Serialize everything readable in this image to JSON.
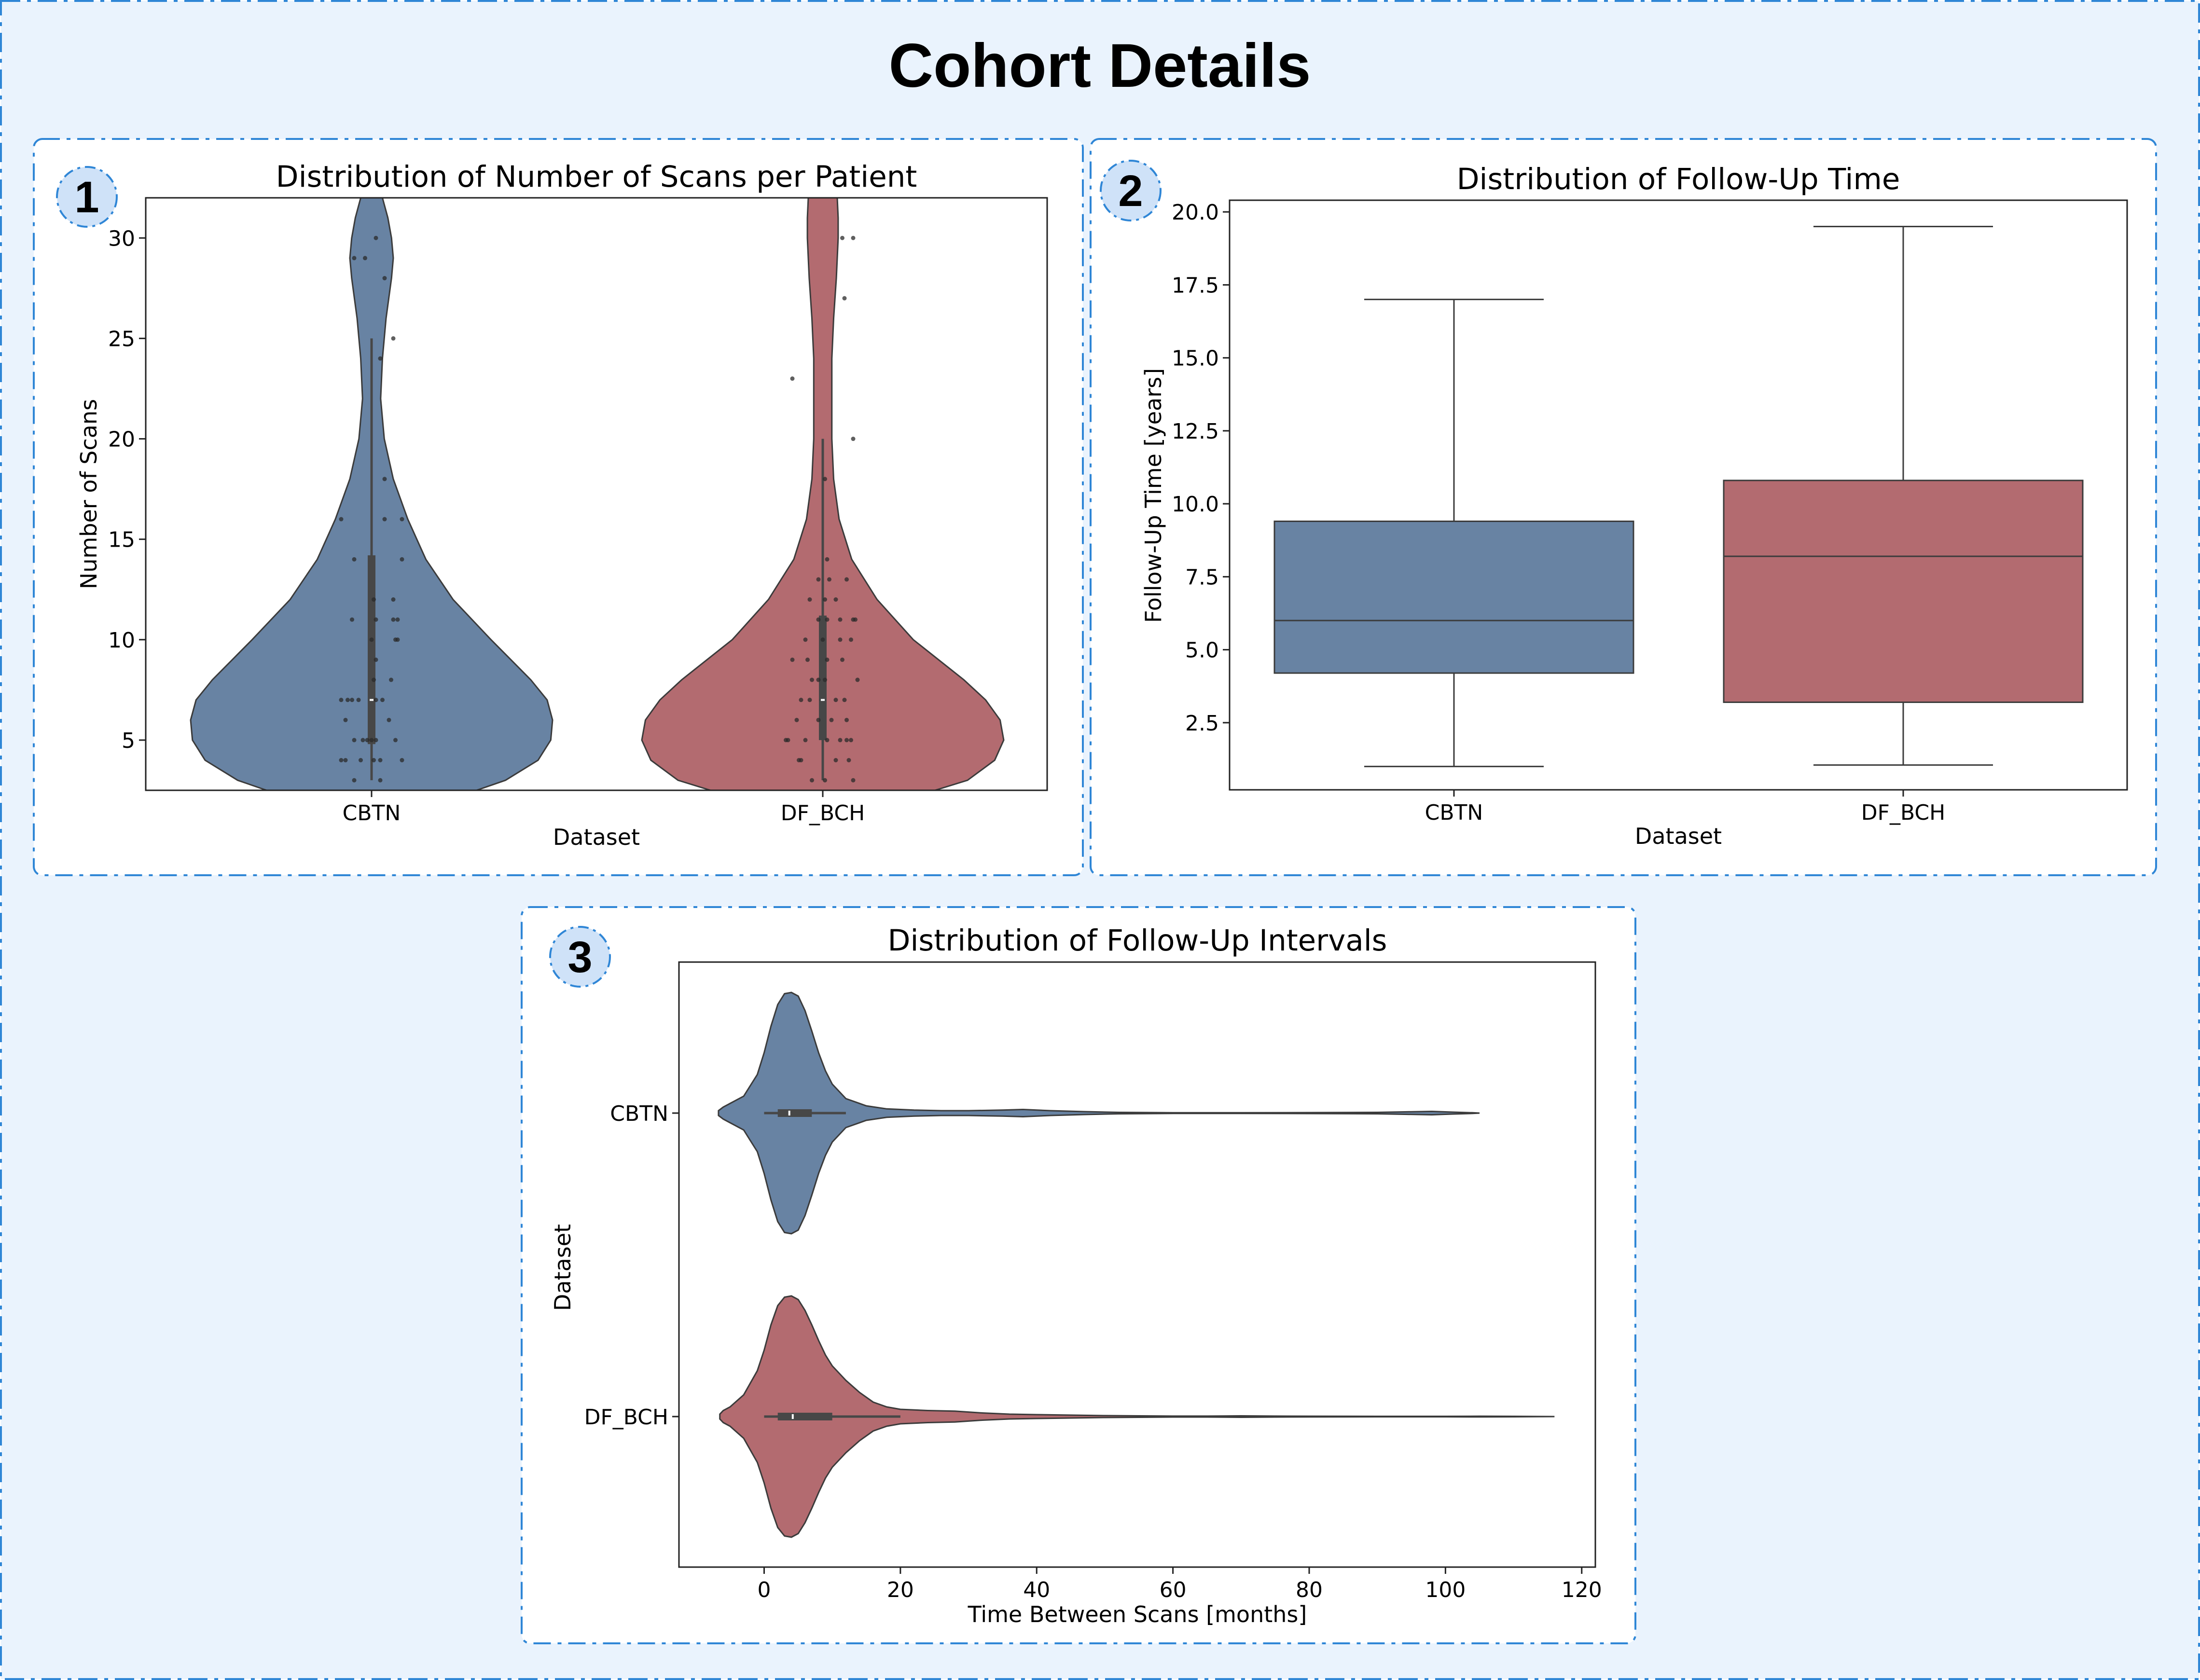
{
  "page": {
    "title": "Cohort Details",
    "background_color": "#eaf3fd",
    "border_color": "#2f86d6",
    "badge_fill": "#cfe2f8",
    "panel_background": "#ffffff"
  },
  "colors": {
    "CBTN": "#6883a3",
    "DF_BCH": "#b36b70",
    "outline": "#3b3b3b",
    "inner_box": "#474747",
    "points": "#2a2a2a"
  },
  "panels": [
    {
      "badge": "1",
      "chart_data": {
        "type": "violin",
        "orientation": "vertical",
        "title": "Distribution of Number of Scans per Patient",
        "xlabel": "Dataset",
        "ylabel": "Number of Scans",
        "categories": [
          "CBTN",
          "DF_BCH"
        ],
        "ylim": [
          2.5,
          32
        ],
        "yticks": [
          5,
          10,
          15,
          20,
          25,
          30
        ],
        "ytick_labels": [
          "5",
          "10",
          "15",
          "20",
          "25",
          "30"
        ],
        "series": [
          {
            "name": "CBTN",
            "density": [
              [
                2.5,
                0.58
              ],
              [
                3,
                0.74
              ],
              [
                4,
                0.92
              ],
              [
                5,
                0.99
              ],
              [
                6,
                1.0
              ],
              [
                7,
                0.97
              ],
              [
                8,
                0.88
              ],
              [
                9,
                0.77
              ],
              [
                10,
                0.66
              ],
              [
                12,
                0.45
              ],
              [
                14,
                0.3
              ],
              [
                16,
                0.2
              ],
              [
                18,
                0.12
              ],
              [
                20,
                0.07
              ],
              [
                22,
                0.05
              ],
              [
                24,
                0.06
              ],
              [
                26,
                0.08
              ],
              [
                28,
                0.11
              ],
              [
                29,
                0.12
              ],
              [
                30,
                0.11
              ],
              [
                31,
                0.09
              ],
              [
                32,
                0.06
              ]
            ],
            "box": {
              "q1": 4.8,
              "median": 7,
              "q3": 14.2,
              "whisker_low": 3,
              "whisker_high": 25
            },
            "points": [
              [
                0.2,
                3
              ],
              [
                -0.4,
                29
              ],
              [
                -0.15,
                29
              ],
              [
                0.3,
                28
              ],
              [
                0.1,
                30
              ],
              [
                0.5,
                25
              ],
              [
                0.2,
                24
              ],
              [
                0.3,
                18
              ],
              [
                0.3,
                16
              ],
              [
                0.7,
                16
              ],
              [
                -0.7,
                16
              ],
              [
                0.7,
                14
              ],
              [
                -0.4,
                14
              ],
              [
                0.05,
                12
              ],
              [
                0.5,
                12
              ],
              [
                0.1,
                11
              ],
              [
                0.5,
                11
              ],
              [
                0.6,
                11
              ],
              [
                -0.45,
                11
              ],
              [
                0.0,
                10
              ],
              [
                0.6,
                10
              ],
              [
                0.55,
                10
              ],
              [
                0.1,
                9
              ],
              [
                0.05,
                8
              ],
              [
                0.45,
                8
              ],
              [
                -0.7,
                7
              ],
              [
                -0.55,
                7
              ],
              [
                -0.45,
                7
              ],
              [
                -0.3,
                7
              ],
              [
                0.1,
                7
              ],
              [
                0.25,
                7
              ],
              [
                -0.6,
                6
              ],
              [
                0.4,
                6
              ],
              [
                -0.4,
                5
              ],
              [
                -0.2,
                5
              ],
              [
                -0.1,
                5
              ],
              [
                0.0,
                5
              ],
              [
                0.1,
                5
              ],
              [
                0.55,
                5
              ],
              [
                -0.7,
                4
              ],
              [
                -0.6,
                4
              ],
              [
                -0.25,
                4
              ],
              [
                0.05,
                4
              ],
              [
                0.2,
                4
              ],
              [
                0.7,
                4
              ],
              [
                -0.4,
                3
              ]
            ]
          },
          {
            "name": "DF_BCH",
            "density": [
              [
                2.5,
                0.62
              ],
              [
                3,
                0.8
              ],
              [
                4,
                0.95
              ],
              [
                5,
                1.0
              ],
              [
                6,
                0.98
              ],
              [
                7,
                0.9
              ],
              [
                8,
                0.78
              ],
              [
                9,
                0.64
              ],
              [
                10,
                0.5
              ],
              [
                12,
                0.3
              ],
              [
                14,
                0.16
              ],
              [
                16,
                0.09
              ],
              [
                18,
                0.06
              ],
              [
                20,
                0.05
              ],
              [
                22,
                0.05
              ],
              [
                24,
                0.05
              ],
              [
                26,
                0.06
              ],
              [
                28,
                0.075
              ],
              [
                30,
                0.085
              ],
              [
                31,
                0.085
              ],
              [
                32,
                0.08
              ]
            ],
            "box": {
              "q1": 5,
              "median": 7,
              "q3": 11.2,
              "whisker_low": 3,
              "whisker_high": 20
            },
            "points": [
              [
                -0.7,
                23
              ],
              [
                0.5,
                27
              ],
              [
                0.45,
                30
              ],
              [
                0.7,
                30
              ],
              [
                0.7,
                20
              ],
              [
                0.05,
                18
              ],
              [
                0.1,
                14
              ],
              [
                -0.1,
                13
              ],
              [
                0.15,
                13
              ],
              [
                0.55,
                13
              ],
              [
                -0.3,
                12
              ],
              [
                0.05,
                12
              ],
              [
                0.3,
                12
              ],
              [
                -0.1,
                11
              ],
              [
                0.1,
                11
              ],
              [
                0.4,
                11
              ],
              [
                0.7,
                11
              ],
              [
                0.75,
                11
              ],
              [
                -0.4,
                10
              ],
              [
                0.0,
                10
              ],
              [
                0.4,
                10
              ],
              [
                0.65,
                10
              ],
              [
                -0.7,
                9
              ],
              [
                -0.35,
                9
              ],
              [
                0.1,
                9
              ],
              [
                0.45,
                9
              ],
              [
                -0.25,
                8
              ],
              [
                -0.1,
                8
              ],
              [
                0.05,
                8
              ],
              [
                0.8,
                8
              ],
              [
                -0.5,
                7
              ],
              [
                -0.3,
                7
              ],
              [
                0.3,
                7
              ],
              [
                0.5,
                7
              ],
              [
                -0.6,
                6
              ],
              [
                -0.1,
                6
              ],
              [
                0.2,
                6
              ],
              [
                0.55,
                6
              ],
              [
                -0.85,
                5
              ],
              [
                -0.8,
                5
              ],
              [
                -0.4,
                5
              ],
              [
                0.1,
                5
              ],
              [
                0.4,
                5
              ],
              [
                0.55,
                5
              ],
              [
                0.65,
                5
              ],
              [
                -0.55,
                4
              ],
              [
                -0.5,
                4
              ],
              [
                0.3,
                4
              ],
              [
                0.6,
                4
              ],
              [
                -0.25,
                3
              ],
              [
                0.05,
                3
              ],
              [
                0.7,
                3
              ]
            ]
          }
        ]
      }
    },
    {
      "badge": "2",
      "chart_data": {
        "type": "box",
        "orientation": "vertical",
        "title": "Distribution of Follow-Up Time",
        "xlabel": "Dataset",
        "ylabel": "Follow-Up Time [years]",
        "categories": [
          "CBTN",
          "DF_BCH"
        ],
        "ylim": [
          0.2,
          20.4
        ],
        "yticks": [
          2.5,
          5.0,
          7.5,
          10.0,
          12.5,
          15.0,
          17.5,
          20.0
        ],
        "ytick_labels": [
          "2.5",
          "5.0",
          "7.5",
          "10.0",
          "12.5",
          "15.0",
          "17.5",
          "20.0"
        ],
        "series": [
          {
            "name": "CBTN",
            "whisker_low": 1.0,
            "q1": 4.2,
            "median": 6.0,
            "q3": 9.4,
            "whisker_high": 17.0
          },
          {
            "name": "DF_BCH",
            "whisker_low": 1.05,
            "q1": 3.2,
            "median": 8.2,
            "q3": 10.8,
            "whisker_high": 19.5
          }
        ]
      }
    },
    {
      "badge": "3",
      "chart_data": {
        "type": "violin",
        "orientation": "horizontal",
        "title": "Distribution of Follow-Up Intervals",
        "xlabel": "Time Between Scans [months]",
        "ylabel": "Dataset",
        "categories": [
          "CBTN",
          "DF_BCH"
        ],
        "xlim": [
          -12.5,
          122
        ],
        "xticks": [
          0,
          20,
          40,
          60,
          80,
          100,
          120
        ],
        "xtick_labels": [
          "0",
          "20",
          "40",
          "60",
          "80",
          "100",
          "120"
        ],
        "series": [
          {
            "name": "CBTN",
            "density": [
              [
                -6.7,
                0.02
              ],
              [
                -6,
                0.05
              ],
              [
                -5,
                0.08
              ],
              [
                -3,
                0.14
              ],
              [
                -1,
                0.32
              ],
              [
                0,
                0.5
              ],
              [
                1,
                0.72
              ],
              [
                2,
                0.9
              ],
              [
                3,
                0.99
              ],
              [
                4,
                1.0
              ],
              [
                5,
                0.97
              ],
              [
                6,
                0.85
              ],
              [
                7,
                0.68
              ],
              [
                8,
                0.5
              ],
              [
                9,
                0.35
              ],
              [
                10,
                0.24
              ],
              [
                12,
                0.12
              ],
              [
                15,
                0.06
              ],
              [
                18,
                0.035
              ],
              [
                22,
                0.025
              ],
              [
                26,
                0.02
              ],
              [
                30,
                0.02
              ],
              [
                35,
                0.025
              ],
              [
                38,
                0.03
              ],
              [
                42,
                0.02
              ],
              [
                47,
                0.012
              ],
              [
                52,
                0.006
              ],
              [
                60,
                0.003
              ],
              [
                70,
                0.003
              ],
              [
                80,
                0.004
              ],
              [
                90,
                0.006
              ],
              [
                94,
                0.01
              ],
              [
                98,
                0.014
              ],
              [
                101,
                0.008
              ],
              [
                104,
                0.003
              ],
              [
                105,
                0.0
              ]
            ],
            "box": {
              "whisker_low": 0,
              "q1": 2,
              "median": 3.7,
              "q3": 7,
              "whisker_high": 12
            }
          },
          {
            "name": "DF_BCH",
            "density": [
              [
                -6.5,
                0.02
              ],
              [
                -6,
                0.05
              ],
              [
                -5,
                0.08
              ],
              [
                -3,
                0.18
              ],
              [
                -1,
                0.38
              ],
              [
                0,
                0.55
              ],
              [
                1,
                0.76
              ],
              [
                2,
                0.92
              ],
              [
                3,
                0.99
              ],
              [
                4,
                1.0
              ],
              [
                5,
                0.97
              ],
              [
                6,
                0.88
              ],
              [
                7,
                0.76
              ],
              [
                8,
                0.63
              ],
              [
                9,
                0.51
              ],
              [
                10,
                0.42
              ],
              [
                12,
                0.3
              ],
              [
                14,
                0.2
              ],
              [
                16,
                0.12
              ],
              [
                18,
                0.08
              ],
              [
                20,
                0.06
              ],
              [
                24,
                0.05
              ],
              [
                28,
                0.045
              ],
              [
                32,
                0.03
              ],
              [
                36,
                0.02
              ],
              [
                40,
                0.016
              ],
              [
                45,
                0.012
              ],
              [
                50,
                0.008
              ],
              [
                55,
                0.006
              ],
              [
                60,
                0.004
              ],
              [
                65,
                0.004
              ],
              [
                70,
                0.006
              ],
              [
                75,
                0.004
              ],
              [
                80,
                0.003
              ],
              [
                90,
                0.002
              ],
              [
                100,
                0.002
              ],
              [
                105,
                0.003
              ],
              [
                110,
                0.002
              ],
              [
                116,
                0.0
              ]
            ],
            "box": {
              "whisker_low": 0,
              "q1": 2,
              "median": 4.2,
              "q3": 10,
              "whisker_high": 20
            }
          }
        ]
      }
    }
  ]
}
